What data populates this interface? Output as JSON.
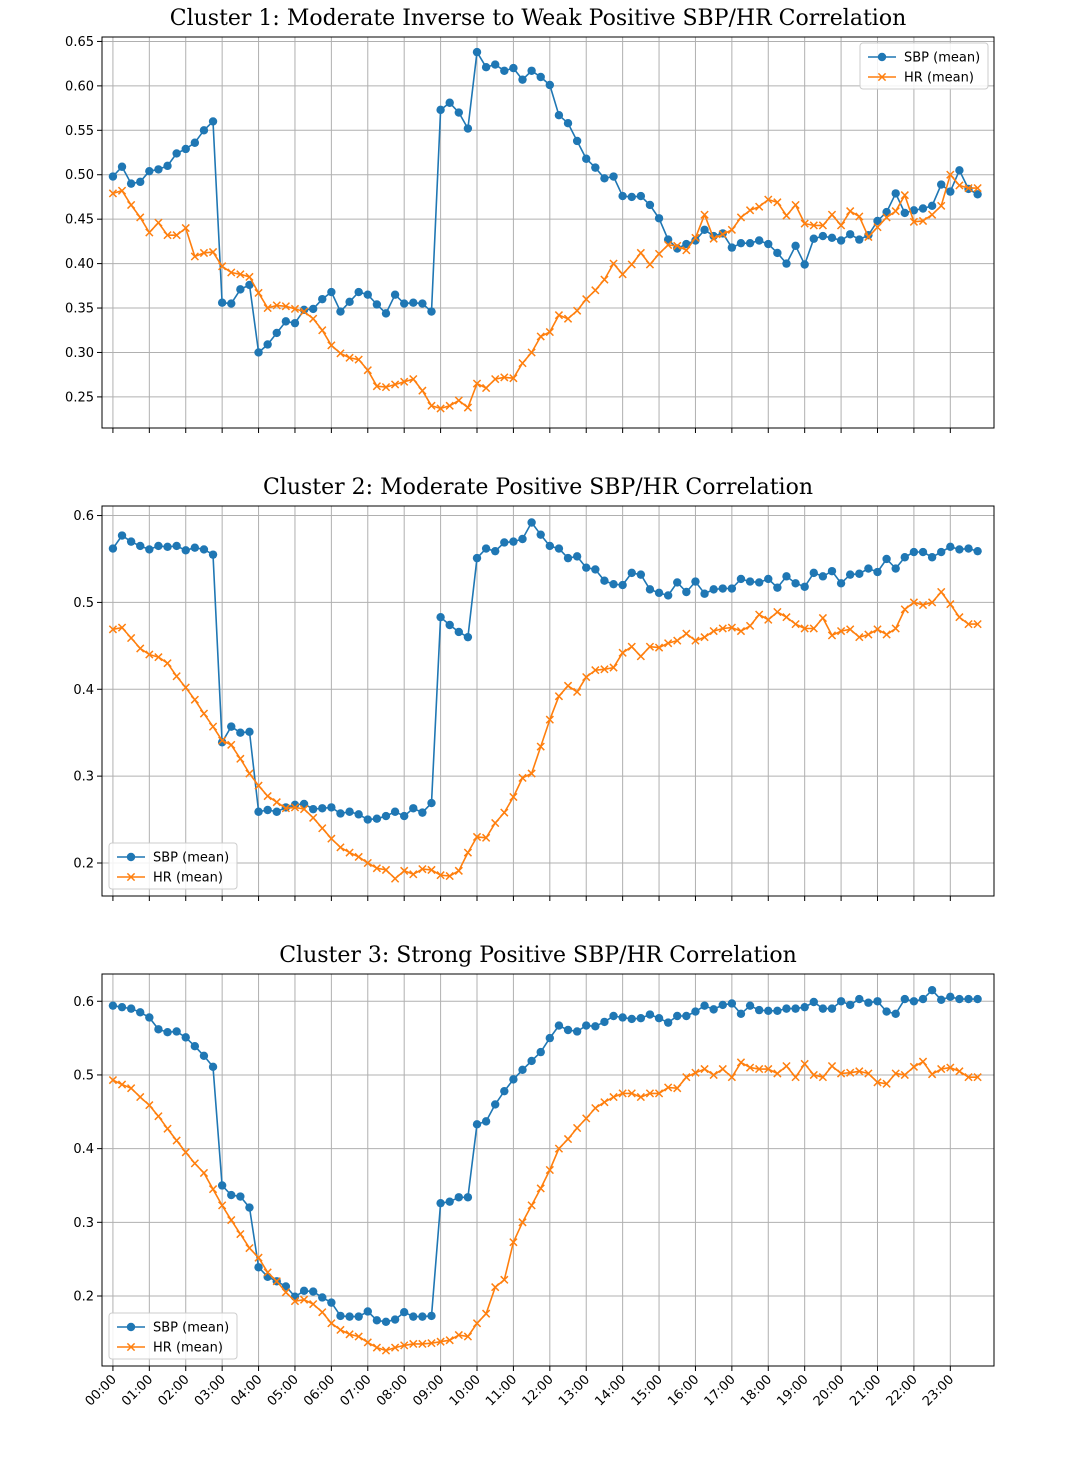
{
  "chart_data": [
    {
      "type": "line",
      "title": "Cluster 1: Moderate Inverse to Weak Positive SBP/HR Correlation",
      "xlabel": "",
      "ylabel": "",
      "ylim": [
        0.215,
        0.655
      ],
      "yticks": [
        0.25,
        0.3,
        0.35,
        0.4,
        0.45,
        0.5,
        0.55,
        0.6,
        0.65
      ],
      "yformat": 2,
      "xlim": [
        -0.3,
        24.2
      ],
      "x_tick_labels_visible": false,
      "grid": true,
      "legend": "upper right",
      "series": [
        {
          "name": "SBP (mean)",
          "color": "#1f77b4",
          "marker": "circle",
          "values": [
            0.498,
            0.509,
            0.49,
            0.492,
            0.504,
            0.506,
            0.51,
            0.524,
            0.529,
            0.536,
            0.55,
            0.56,
            0.356,
            0.355,
            0.371,
            0.376,
            0.3,
            0.309,
            0.322,
            0.335,
            0.333,
            0.348,
            0.349,
            0.36,
            0.368,
            0.346,
            0.357,
            0.368,
            0.365,
            0.354,
            0.344,
            0.365,
            0.355,
            0.356,
            0.355,
            0.346,
            0.573,
            0.581,
            0.57,
            0.552,
            0.638,
            0.621,
            0.624,
            0.617,
            0.62,
            0.607,
            0.617,
            0.61,
            0.601,
            0.567,
            0.558,
            0.538,
            0.518,
            0.508,
            0.496,
            0.498,
            0.476,
            0.475,
            0.476,
            0.466,
            0.451,
            0.427,
            0.417,
            0.422,
            0.426,
            0.438,
            0.431,
            0.434,
            0.418,
            0.423,
            0.423,
            0.426,
            0.422,
            0.412,
            0.4,
            0.42,
            0.399,
            0.428,
            0.431,
            0.429,
            0.426,
            0.433,
            0.427,
            0.432,
            0.448,
            0.458,
            0.479,
            0.457,
            0.46,
            0.462,
            0.465,
            0.489,
            0.481,
            0.505,
            0.484,
            0.478
          ]
        },
        {
          "name": "HR (mean)",
          "color": "#ff7f0e",
          "marker": "x",
          "values": [
            0.479,
            0.482,
            0.466,
            0.452,
            0.435,
            0.446,
            0.432,
            0.432,
            0.44,
            0.408,
            0.412,
            0.413,
            0.397,
            0.39,
            0.388,
            0.385,
            0.367,
            0.35,
            0.353,
            0.352,
            0.349,
            0.346,
            0.338,
            0.325,
            0.308,
            0.299,
            0.294,
            0.292,
            0.28,
            0.262,
            0.261,
            0.264,
            0.267,
            0.27,
            0.257,
            0.24,
            0.237,
            0.24,
            0.246,
            0.238,
            0.265,
            0.26,
            0.27,
            0.272,
            0.271,
            0.288,
            0.3,
            0.318,
            0.323,
            0.342,
            0.338,
            0.347,
            0.36,
            0.37,
            0.382,
            0.4,
            0.388,
            0.399,
            0.412,
            0.399,
            0.411,
            0.421,
            0.42,
            0.415,
            0.429,
            0.455,
            0.428,
            0.433,
            0.438,
            0.452,
            0.46,
            0.464,
            0.472,
            0.469,
            0.454,
            0.466,
            0.445,
            0.443,
            0.443,
            0.455,
            0.443,
            0.459,
            0.453,
            0.43,
            0.441,
            0.452,
            0.459,
            0.477,
            0.447,
            0.448,
            0.455,
            0.465,
            0.5,
            0.488,
            0.485,
            0.485
          ]
        }
      ]
    },
    {
      "type": "line",
      "title": "Cluster 2: Moderate Positive SBP/HR Correlation",
      "xlabel": "",
      "ylabel": "",
      "ylim": [
        0.162,
        0.611
      ],
      "yticks": [
        0.2,
        0.3,
        0.4,
        0.5,
        0.6
      ],
      "yformat": 1,
      "xlim": [
        -0.3,
        24.2
      ],
      "x_tick_labels_visible": false,
      "grid": true,
      "legend": "lower left",
      "series": [
        {
          "name": "SBP (mean)",
          "color": "#1f77b4",
          "marker": "circle",
          "values": [
            0.562,
            0.577,
            0.57,
            0.565,
            0.561,
            0.565,
            0.564,
            0.565,
            0.56,
            0.563,
            0.561,
            0.555,
            0.339,
            0.357,
            0.35,
            0.351,
            0.259,
            0.261,
            0.259,
            0.264,
            0.267,
            0.268,
            0.262,
            0.263,
            0.264,
            0.257,
            0.259,
            0.256,
            0.25,
            0.251,
            0.254,
            0.259,
            0.254,
            0.263,
            0.258,
            0.269,
            0.483,
            0.474,
            0.466,
            0.46,
            0.551,
            0.562,
            0.559,
            0.569,
            0.57,
            0.573,
            0.592,
            0.578,
            0.565,
            0.562,
            0.551,
            0.553,
            0.54,
            0.538,
            0.525,
            0.521,
            0.52,
            0.534,
            0.532,
            0.515,
            0.511,
            0.508,
            0.523,
            0.512,
            0.524,
            0.51,
            0.515,
            0.516,
            0.516,
            0.527,
            0.524,
            0.523,
            0.527,
            0.517,
            0.53,
            0.522,
            0.518,
            0.534,
            0.53,
            0.536,
            0.522,
            0.532,
            0.533,
            0.539,
            0.535,
            0.55,
            0.539,
            0.552,
            0.558,
            0.558,
            0.552,
            0.558,
            0.564,
            0.561,
            0.562,
            0.559
          ]
        },
        {
          "name": "HR (mean)",
          "color": "#ff7f0e",
          "marker": "x",
          "values": [
            0.469,
            0.471,
            0.459,
            0.447,
            0.44,
            0.437,
            0.43,
            0.415,
            0.402,
            0.388,
            0.372,
            0.357,
            0.341,
            0.336,
            0.32,
            0.303,
            0.289,
            0.277,
            0.27,
            0.263,
            0.264,
            0.262,
            0.252,
            0.24,
            0.228,
            0.218,
            0.212,
            0.207,
            0.2,
            0.194,
            0.192,
            0.182,
            0.191,
            0.187,
            0.193,
            0.192,
            0.186,
            0.185,
            0.191,
            0.212,
            0.23,
            0.229,
            0.246,
            0.258,
            0.276,
            0.298,
            0.303,
            0.334,
            0.365,
            0.392,
            0.404,
            0.397,
            0.414,
            0.422,
            0.423,
            0.425,
            0.442,
            0.449,
            0.438,
            0.449,
            0.448,
            0.453,
            0.456,
            0.464,
            0.456,
            0.46,
            0.467,
            0.47,
            0.471,
            0.467,
            0.473,
            0.486,
            0.48,
            0.489,
            0.483,
            0.475,
            0.47,
            0.47,
            0.482,
            0.462,
            0.467,
            0.469,
            0.46,
            0.463,
            0.469,
            0.463,
            0.47,
            0.492,
            0.5,
            0.497,
            0.5,
            0.512,
            0.498,
            0.483,
            0.475,
            0.475
          ]
        }
      ]
    },
    {
      "type": "line",
      "title": "Cluster 3: Strong Positive SBP/HR Correlation",
      "xlabel": "",
      "ylabel": "",
      "ylim": [
        0.105,
        0.637
      ],
      "yticks": [
        0.2,
        0.3,
        0.4,
        0.5,
        0.6
      ],
      "yformat": 1,
      "xlim": [
        -0.3,
        24.2
      ],
      "x_tick_labels_visible": true,
      "xticks": [
        "00:00",
        "01:00",
        "02:00",
        "03:00",
        "04:00",
        "05:00",
        "06:00",
        "07:00",
        "08:00",
        "09:00",
        "10:00",
        "11:00",
        "12:00",
        "13:00",
        "14:00",
        "15:00",
        "16:00",
        "17:00",
        "18:00",
        "19:00",
        "20:00",
        "21:00",
        "22:00",
        "23:00"
      ],
      "grid": true,
      "legend": "lower left",
      "series": [
        {
          "name": "SBP (mean)",
          "color": "#1f77b4",
          "marker": "circle",
          "values": [
            0.594,
            0.592,
            0.59,
            0.585,
            0.578,
            0.562,
            0.558,
            0.559,
            0.551,
            0.539,
            0.526,
            0.511,
            0.35,
            0.337,
            0.335,
            0.32,
            0.239,
            0.226,
            0.22,
            0.213,
            0.199,
            0.207,
            0.206,
            0.198,
            0.191,
            0.173,
            0.172,
            0.172,
            0.179,
            0.167,
            0.165,
            0.168,
            0.178,
            0.172,
            0.172,
            0.173,
            0.326,
            0.328,
            0.334,
            0.334,
            0.433,
            0.437,
            0.46,
            0.478,
            0.494,
            0.507,
            0.519,
            0.531,
            0.55,
            0.567,
            0.561,
            0.559,
            0.567,
            0.566,
            0.572,
            0.58,
            0.578,
            0.576,
            0.577,
            0.582,
            0.577,
            0.571,
            0.58,
            0.58,
            0.586,
            0.594,
            0.589,
            0.595,
            0.597,
            0.583,
            0.594,
            0.588,
            0.587,
            0.587,
            0.59,
            0.59,
            0.592,
            0.599,
            0.59,
            0.59,
            0.6,
            0.595,
            0.603,
            0.598,
            0.6,
            0.586,
            0.583,
            0.603,
            0.6,
            0.603,
            0.615,
            0.602,
            0.606,
            0.603,
            0.603,
            0.603
          ]
        },
        {
          "name": "HR (mean)",
          "color": "#ff7f0e",
          "marker": "x",
          "values": [
            0.493,
            0.487,
            0.482,
            0.47,
            0.459,
            0.444,
            0.427,
            0.411,
            0.395,
            0.38,
            0.367,
            0.345,
            0.323,
            0.303,
            0.284,
            0.265,
            0.252,
            0.232,
            0.22,
            0.205,
            0.193,
            0.195,
            0.189,
            0.178,
            0.163,
            0.154,
            0.148,
            0.145,
            0.137,
            0.13,
            0.126,
            0.13,
            0.133,
            0.135,
            0.135,
            0.136,
            0.138,
            0.14,
            0.147,
            0.145,
            0.163,
            0.176,
            0.212,
            0.222,
            0.273,
            0.3,
            0.323,
            0.346,
            0.371,
            0.4,
            0.413,
            0.428,
            0.441,
            0.455,
            0.463,
            0.47,
            0.475,
            0.475,
            0.47,
            0.475,
            0.475,
            0.483,
            0.482,
            0.497,
            0.503,
            0.508,
            0.5,
            0.508,
            0.497,
            0.517,
            0.51,
            0.508,
            0.508,
            0.502,
            0.512,
            0.497,
            0.515,
            0.5,
            0.497,
            0.512,
            0.502,
            0.503,
            0.505,
            0.502,
            0.49,
            0.488,
            0.502,
            0.5,
            0.511,
            0.518,
            0.501,
            0.508,
            0.51,
            0.505,
            0.497,
            0.497
          ]
        }
      ]
    }
  ]
}
